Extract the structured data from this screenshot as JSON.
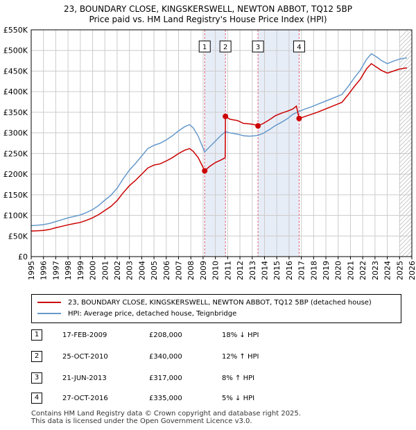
{
  "title_line1": "23, BOUNDARY CLOSE, KINGSKERSWELL, NEWTON ABBOT, TQ12 5BP",
  "title_line2": "Price paid vs. HM Land Registry's House Price Index (HPI)",
  "legend": {
    "property": "23, BOUNDARY CLOSE, KINGSKERSWELL, NEWTON ABBOT, TQ12 5BP (detached house)",
    "hpi": "HPI: Average price, detached house, Teignbridge"
  },
  "transactions": [
    {
      "num": "1",
      "date": "17-FEB-2009",
      "price": "£208,000",
      "hpi": "18% ↓ HPI"
    },
    {
      "num": "2",
      "date": "25-OCT-2010",
      "price": "£340,000",
      "hpi": "12% ↑ HPI"
    },
    {
      "num": "3",
      "date": "21-JUN-2013",
      "price": "£317,000",
      "hpi": "8% ↑ HPI"
    },
    {
      "num": "4",
      "date": "27-OCT-2016",
      "price": "£335,000",
      "hpi": "5% ↓ HPI"
    }
  ],
  "footer": {
    "line1": "Contains HM Land Registry data © Crown copyright and database right 2025.",
    "line2": "This data is licensed under the Open Government Licence v3.0."
  },
  "colors": {
    "property_line": "#cc0000",
    "hpi_line": "#6699cc",
    "shade": "#dde6f4",
    "vline": "#dd6677"
  },
  "chart_data": {
    "type": "line",
    "x_range": [
      1995,
      2026
    ],
    "y_range": [
      0,
      550000
    ],
    "y_ticks": [
      {
        "value": 0,
        "label": "£0"
      },
      {
        "value": 50000,
        "label": "£50K"
      },
      {
        "value": 100000,
        "label": "£100K"
      },
      {
        "value": 150000,
        "label": "£150K"
      },
      {
        "value": 200000,
        "label": "£200K"
      },
      {
        "value": 250000,
        "label": "£250K"
      },
      {
        "value": 300000,
        "label": "£300K"
      },
      {
        "value": 350000,
        "label": "£350K"
      },
      {
        "value": 400000,
        "label": "£400K"
      },
      {
        "value": 450000,
        "label": "£450K"
      },
      {
        "value": 500000,
        "label": "£500K"
      },
      {
        "value": 550000,
        "label": "£550K"
      }
    ],
    "x_ticks": [
      "1995",
      "1996",
      "1997",
      "1998",
      "1999",
      "2000",
      "2001",
      "2002",
      "2003",
      "2004",
      "2005",
      "2006",
      "2007",
      "2008",
      "2009",
      "2010",
      "2011",
      "2012",
      "2013",
      "2014",
      "2015",
      "2016",
      "2017",
      "2018",
      "2019",
      "2020",
      "2021",
      "2022",
      "2023",
      "2024",
      "2025",
      "2026"
    ],
    "grid": true,
    "shaded_periods": [
      [
        2009.13,
        2010.82
      ],
      [
        2013.47,
        2016.82
      ]
    ],
    "hatched_from": 2025.0,
    "markers": [
      {
        "label": "1",
        "x": 2009.13,
        "y": 208000
      },
      {
        "label": "2",
        "x": 2010.82,
        "y": 340000
      },
      {
        "label": "3",
        "x": 2013.47,
        "y": 317000
      },
      {
        "label": "4",
        "x": 2016.82,
        "y": 335000
      }
    ],
    "series": [
      {
        "name": "23, BOUNDARY CLOSE, KINGSKERSWELL, NEWTON ABBOT, TQ12 5BP (detached house)",
        "color": "#cc0000",
        "points": [
          [
            1995.0,
            62000
          ],
          [
            1995.5,
            62500
          ],
          [
            1996.0,
            63500
          ],
          [
            1996.5,
            66000
          ],
          [
            1997.0,
            70000
          ],
          [
            1997.5,
            73500
          ],
          [
            1998.0,
            77000
          ],
          [
            1998.5,
            80000
          ],
          [
            1999.0,
            83000
          ],
          [
            1999.5,
            88000
          ],
          [
            2000.0,
            94000
          ],
          [
            2000.5,
            102000
          ],
          [
            2001.0,
            112000
          ],
          [
            2001.5,
            122000
          ],
          [
            2002.0,
            136000
          ],
          [
            2002.5,
            155000
          ],
          [
            2003.0,
            172000
          ],
          [
            2003.5,
            185000
          ],
          [
            2004.0,
            200000
          ],
          [
            2004.5,
            215000
          ],
          [
            2005.0,
            222000
          ],
          [
            2005.5,
            225000
          ],
          [
            2006.0,
            232000
          ],
          [
            2006.5,
            240000
          ],
          [
            2007.0,
            250000
          ],
          [
            2007.5,
            258000
          ],
          [
            2007.9,
            262000
          ],
          [
            2008.2,
            255000
          ],
          [
            2008.6,
            240000
          ],
          [
            2008.9,
            222000
          ],
          [
            2009.13,
            208000
          ],
          [
            2009.5,
            218000
          ],
          [
            2010.0,
            228000
          ],
          [
            2010.5,
            235000
          ],
          [
            2010.8,
            240000
          ],
          [
            2010.82,
            340000
          ],
          [
            2011.2,
            333000
          ],
          [
            2011.8,
            330000
          ],
          [
            2012.3,
            323000
          ],
          [
            2012.8,
            322000
          ],
          [
            2013.2,
            320000
          ],
          [
            2013.47,
            317000
          ],
          [
            2013.9,
            323000
          ],
          [
            2014.4,
            332000
          ],
          [
            2014.9,
            342000
          ],
          [
            2015.4,
            348000
          ],
          [
            2015.9,
            353000
          ],
          [
            2016.3,
            358000
          ],
          [
            2016.6,
            365000
          ],
          [
            2016.82,
            335000
          ],
          [
            2017.3,
            340000
          ],
          [
            2017.8,
            345000
          ],
          [
            2018.3,
            350000
          ],
          [
            2018.8,
            356000
          ],
          [
            2019.3,
            362000
          ],
          [
            2019.8,
            368000
          ],
          [
            2020.3,
            374000
          ],
          [
            2020.8,
            392000
          ],
          [
            2021.3,
            412000
          ],
          [
            2021.8,
            430000
          ],
          [
            2022.3,
            455000
          ],
          [
            2022.7,
            468000
          ],
          [
            2023.1,
            460000
          ],
          [
            2023.5,
            452000
          ],
          [
            2024.0,
            445000
          ],
          [
            2024.5,
            450000
          ],
          [
            2025.0,
            455000
          ],
          [
            2025.6,
            458000
          ]
        ]
      },
      {
        "name": "HPI: Average price, detached house, Teignbridge",
        "color": "#6699cc",
        "points": [
          [
            1995.0,
            75000
          ],
          [
            1995.5,
            76000
          ],
          [
            1996.0,
            77500
          ],
          [
            1996.5,
            80500
          ],
          [
            1997.0,
            85000
          ],
          [
            1997.5,
            89500
          ],
          [
            1998.0,
            94000
          ],
          [
            1998.5,
            97500
          ],
          [
            1999.0,
            101000
          ],
          [
            1999.5,
            107000
          ],
          [
            2000.0,
            114000
          ],
          [
            2000.5,
            124000
          ],
          [
            2001.0,
            137000
          ],
          [
            2001.5,
            149000
          ],
          [
            2002.0,
            166000
          ],
          [
            2002.5,
            189000
          ],
          [
            2003.0,
            210000
          ],
          [
            2003.5,
            226000
          ],
          [
            2004.0,
            244000
          ],
          [
            2004.5,
            262000
          ],
          [
            2005.0,
            270000
          ],
          [
            2005.5,
            275000
          ],
          [
            2006.0,
            283000
          ],
          [
            2006.5,
            293000
          ],
          [
            2007.0,
            305000
          ],
          [
            2007.5,
            315000
          ],
          [
            2007.9,
            320000
          ],
          [
            2008.2,
            312000
          ],
          [
            2008.6,
            292000
          ],
          [
            2008.9,
            270000
          ],
          [
            2009.13,
            254000
          ],
          [
            2009.5,
            265000
          ],
          [
            2010.0,
            280000
          ],
          [
            2010.5,
            295000
          ],
          [
            2010.82,
            303000
          ],
          [
            2011.2,
            300000
          ],
          [
            2011.8,
            297000
          ],
          [
            2012.3,
            293000
          ],
          [
            2012.8,
            292000
          ],
          [
            2013.2,
            293000
          ],
          [
            2013.47,
            294000
          ],
          [
            2013.9,
            299000
          ],
          [
            2014.4,
            308000
          ],
          [
            2014.9,
            318000
          ],
          [
            2015.4,
            326000
          ],
          [
            2015.9,
            335000
          ],
          [
            2016.3,
            345000
          ],
          [
            2016.82,
            352000
          ],
          [
            2017.3,
            358000
          ],
          [
            2017.8,
            363000
          ],
          [
            2018.3,
            369000
          ],
          [
            2018.8,
            375000
          ],
          [
            2019.3,
            381000
          ],
          [
            2019.8,
            387000
          ],
          [
            2020.3,
            393000
          ],
          [
            2020.8,
            412000
          ],
          [
            2021.3,
            433000
          ],
          [
            2021.8,
            452000
          ],
          [
            2022.3,
            478000
          ],
          [
            2022.7,
            492000
          ],
          [
            2023.1,
            485000
          ],
          [
            2023.5,
            476000
          ],
          [
            2024.0,
            468000
          ],
          [
            2024.5,
            474000
          ],
          [
            2025.0,
            479000
          ],
          [
            2025.6,
            482000
          ]
        ]
      }
    ]
  }
}
